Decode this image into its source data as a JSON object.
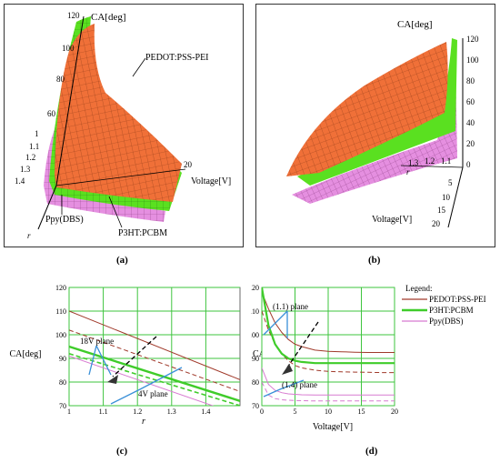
{
  "captions": {
    "a": "(a)",
    "b": "(b)",
    "c": "(c)",
    "d": "(d)"
  },
  "panel_a": {
    "z_label": "CA[deg]",
    "z_ticks": [
      "120",
      "100",
      "80",
      "60"
    ],
    "r_ticks": [
      "1",
      "1.1",
      "1.2",
      "1.3",
      "1.4"
    ],
    "r_label": "r",
    "v_tick": "20",
    "v_label": "Voltage[V]",
    "surface_labels": [
      "PEDOT:PSS-PEI",
      "P3HT:PCBM",
      "Ppy(DBS)"
    ]
  },
  "panel_b": {
    "z_label": "CA[deg]",
    "z_ticks": [
      "120",
      "100",
      "80",
      "60",
      "40",
      "20",
      "0"
    ],
    "r_ticks": [
      "1.3",
      "1.2",
      "1.1"
    ],
    "r_label": "r",
    "v_ticks": [
      "5",
      "10",
      "15",
      "20"
    ],
    "v_label": "Voltage[V]"
  },
  "colors": {
    "pedot": "#a0392a",
    "p3ht": "#3fcc2a",
    "ppy": "#d77ad0",
    "surface_orange": "#f07038",
    "surface_green": "#5ae020",
    "surface_pink": "#e58fe0",
    "grid": "#3ec43e",
    "annot": "#3a90d8"
  },
  "chart_data": [
    {
      "type": "line",
      "xlabel": "r",
      "ylabel": "CA[deg]",
      "xlim": [
        1,
        1.5
      ],
      "ylim": [
        70,
        120
      ],
      "xticks": [
        "1",
        "1.1",
        "1.2",
        "1.3",
        "1.4"
      ],
      "yticks": [
        "70",
        "80",
        "90",
        "100",
        "110",
        "120"
      ],
      "x": [
        1.0,
        1.5
      ],
      "series": [
        {
          "key": "pedot_18",
          "color": "#a0392a",
          "dash": false,
          "width": 1,
          "values": [
            110,
            81
          ]
        },
        {
          "key": "p3ht_18",
          "color": "#3fcc2a",
          "dash": false,
          "width": 2.4,
          "values": [
            95,
            72
          ]
        },
        {
          "key": "pedot_4",
          "color": "#a0392a",
          "dash": true,
          "width": 1,
          "values": [
            102,
            76
          ]
        },
        {
          "key": "ppy_18",
          "color": "#d77ad0",
          "dash": false,
          "width": 1,
          "values": [
            91,
            66
          ]
        },
        {
          "key": "p3ht_4",
          "color": "#3fcc2a",
          "dash": true,
          "width": 1.6,
          "values": [
            92,
            70
          ]
        }
      ],
      "annotations": [
        "18V plane",
        "4V plane"
      ]
    },
    {
      "type": "line",
      "xlabel": "Voltage[V]",
      "ylabel": "CA[deg]",
      "xlim": [
        0,
        20
      ],
      "ylim": [
        70,
        120
      ],
      "xticks": [
        "0",
        "5",
        "10",
        "15",
        "20"
      ],
      "yticks": [
        "70",
        "80",
        "90",
        "100",
        "110",
        "120"
      ],
      "x": [
        0,
        1,
        2,
        3,
        4,
        5,
        6,
        8,
        10,
        12,
        14,
        16,
        18,
        20
      ],
      "series": [
        {
          "key": "pedot_r11",
          "color": "#a0392a",
          "dash": false,
          "width": 1,
          "values": [
            118,
            111,
            105,
            101,
            98,
            96,
            95,
            93.5,
            93,
            92.8,
            92.6,
            92.5,
            92.5,
            92.5
          ]
        },
        {
          "key": "pedot_r14",
          "color": "#a0392a",
          "dash": true,
          "width": 1,
          "values": [
            110,
            102,
            96,
            92,
            89,
            87,
            86,
            85,
            84.5,
            84.3,
            84.2,
            84.1,
            84,
            84
          ]
        },
        {
          "key": "p3ht_r11",
          "color": "#3fcc2a",
          "dash": false,
          "width": 2.2,
          "values": [
            120,
            104,
            96,
            92,
            90,
            89,
            88.5,
            88,
            88,
            88,
            88,
            88,
            88,
            88
          ]
        },
        {
          "key": "ppy_r11",
          "color": "#d77ad0",
          "dash": false,
          "width": 1,
          "values": [
            86,
            79,
            76.5,
            75.5,
            75,
            74.8,
            74.6,
            74.5,
            74.5,
            74.5,
            74.5,
            74.5,
            74.5,
            74.5
          ]
        },
        {
          "key": "ppy_r14",
          "color": "#d77ad0",
          "dash": true,
          "width": 1,
          "values": [
            80,
            74.5,
            73,
            72.5,
            72.3,
            72.2,
            72.1,
            72,
            72,
            72,
            72,
            72,
            72,
            72
          ]
        }
      ],
      "annotations": [
        "(1.1) plane",
        "(1.4) plane"
      ]
    }
  ],
  "legend": {
    "title": "Legend:",
    "entries": [
      {
        "label": "PEDOT:PSS-PEI",
        "color": "#a0392a",
        "width": 1.2
      },
      {
        "label": "P3HT:PCBM",
        "color": "#3fcc2a",
        "width": 2.4
      },
      {
        "label": "Ppy(DBS)",
        "color": "#d77ad0",
        "width": 1.2
      }
    ]
  }
}
